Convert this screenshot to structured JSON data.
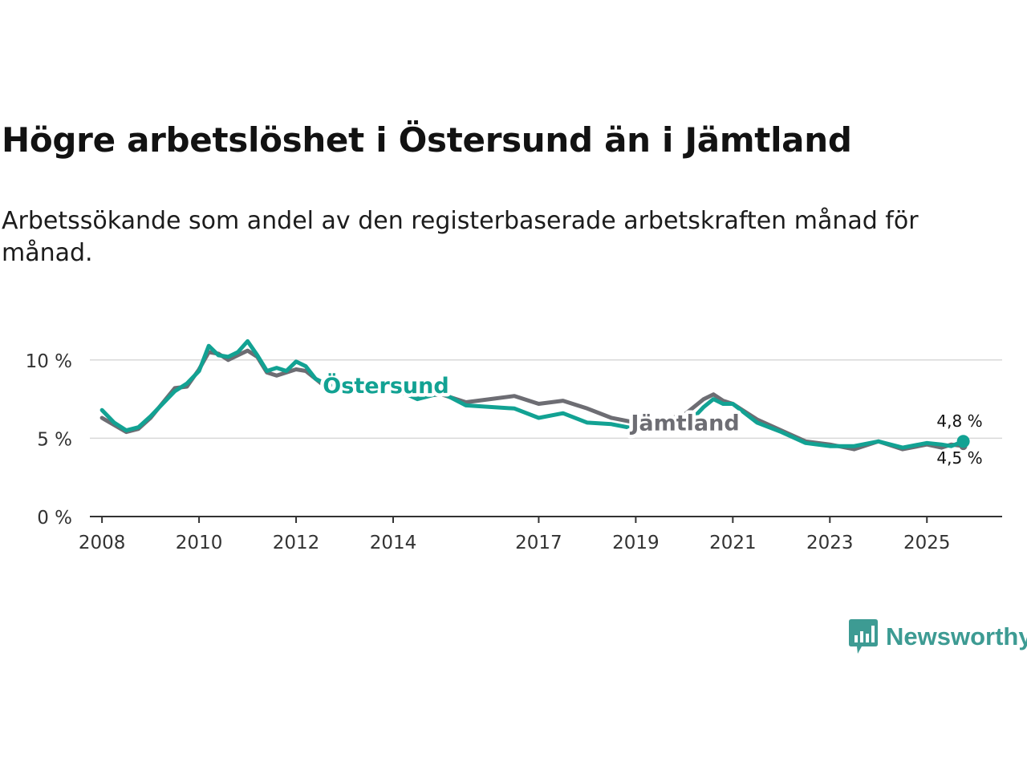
{
  "title": "Högre arbetslöshet i Östersund än i Jämtland",
  "subtitle": "Arbetssökande som andel av den registerbaserade arbetskraften månad för månad.",
  "brand": "Newsworthy",
  "colors": {
    "ostersund": "#12a293",
    "jamtland": "#6d6d73",
    "grid": "#d9d9d9",
    "axis": "#333333"
  },
  "chart_data": {
    "type": "line",
    "title": "Högre arbetslöshet i Östersund än i Jämtland",
    "xlabel": "",
    "ylabel": "",
    "ylim": [
      0,
      12.5
    ],
    "xlim": [
      2007.75,
      2026.55
    ],
    "y_ticks": [
      0,
      5,
      10
    ],
    "y_tick_labels": [
      "0 %",
      "5 %",
      "10 %"
    ],
    "x_ticks": [
      2008,
      2010,
      2012,
      2014,
      2017,
      2019,
      2021,
      2023,
      2025
    ],
    "x_tick_labels": [
      "2008",
      "2010",
      "2012",
      "2014",
      "2017",
      "2019",
      "2021",
      "2023",
      "2025"
    ],
    "grid": true,
    "series": [
      {
        "name": "Jämtland",
        "label": "Jämtland",
        "end_label": "4,5 %",
        "x": [
          2008.0,
          2008.5,
          2008.75,
          2009.0,
          2009.5,
          2009.75,
          2010.0,
          2010.2,
          2010.4,
          2010.6,
          2010.8,
          2011.0,
          2011.2,
          2011.4,
          2011.6,
          2011.8,
          2012.0,
          2012.2,
          2012.4,
          2012.6,
          2013.0,
          2013.5,
          2014.0,
          2014.5,
          2015.0,
          2015.5,
          2016.0,
          2016.5,
          2017.0,
          2017.5,
          2018.0,
          2018.5,
          2019.0,
          2019.5,
          2020.0,
          2020.4,
          2020.6,
          2020.8,
          2021.0,
          2021.5,
          2022.0,
          2022.5,
          2023.0,
          2023.5,
          2024.0,
          2024.5,
          2025.0,
          2025.3,
          2025.5,
          2025.75
        ],
        "values": [
          6.3,
          5.4,
          5.6,
          6.3,
          8.2,
          8.3,
          9.4,
          10.5,
          10.4,
          10.0,
          10.3,
          10.6,
          10.2,
          9.2,
          9.0,
          9.2,
          9.4,
          9.3,
          8.8,
          8.3,
          8.5,
          7.8,
          8.0,
          7.7,
          7.8,
          7.3,
          7.5,
          7.7,
          7.2,
          7.4,
          6.9,
          6.3,
          6.0,
          6.1,
          6.5,
          7.5,
          7.8,
          7.4,
          7.2,
          6.2,
          5.5,
          4.8,
          4.6,
          4.3,
          4.8,
          4.3,
          4.6,
          4.4,
          4.6,
          4.5
        ]
      },
      {
        "name": "Östersund",
        "label": "Östersund",
        "end_label": "4,8 %",
        "x": [
          2008.0,
          2008.25,
          2008.5,
          2008.75,
          2009.0,
          2009.5,
          2009.75,
          2010.0,
          2010.2,
          2010.4,
          2010.6,
          2010.8,
          2011.0,
          2011.2,
          2011.4,
          2011.6,
          2011.8,
          2012.0,
          2012.2,
          2012.4,
          2012.6,
          2013.0,
          2013.5,
          2014.0,
          2014.5,
          2015.0,
          2015.5,
          2016.0,
          2016.5,
          2017.0,
          2017.5,
          2018.0,
          2018.5,
          2019.0,
          2019.5,
          2020.0,
          2020.4,
          2020.6,
          2020.8,
          2021.0,
          2021.5,
          2022.0,
          2022.5,
          2023.0,
          2023.5,
          2024.0,
          2024.5,
          2025.0,
          2025.3,
          2025.5,
          2025.75
        ],
        "values": [
          6.8,
          6.0,
          5.5,
          5.7,
          6.4,
          8.0,
          8.5,
          9.3,
          10.9,
          10.3,
          10.2,
          10.5,
          11.2,
          10.3,
          9.3,
          9.5,
          9.3,
          9.9,
          9.6,
          8.8,
          8.5,
          8.4,
          8.0,
          8.2,
          7.5,
          7.9,
          7.1,
          7.0,
          6.9,
          6.3,
          6.6,
          6.0,
          5.9,
          5.6,
          5.6,
          5.7,
          7.0,
          7.5,
          7.2,
          7.2,
          6.0,
          5.4,
          4.7,
          4.5,
          4.5,
          4.8,
          4.4,
          4.7,
          4.6,
          4.5,
          4.8
        ]
      }
    ]
  }
}
